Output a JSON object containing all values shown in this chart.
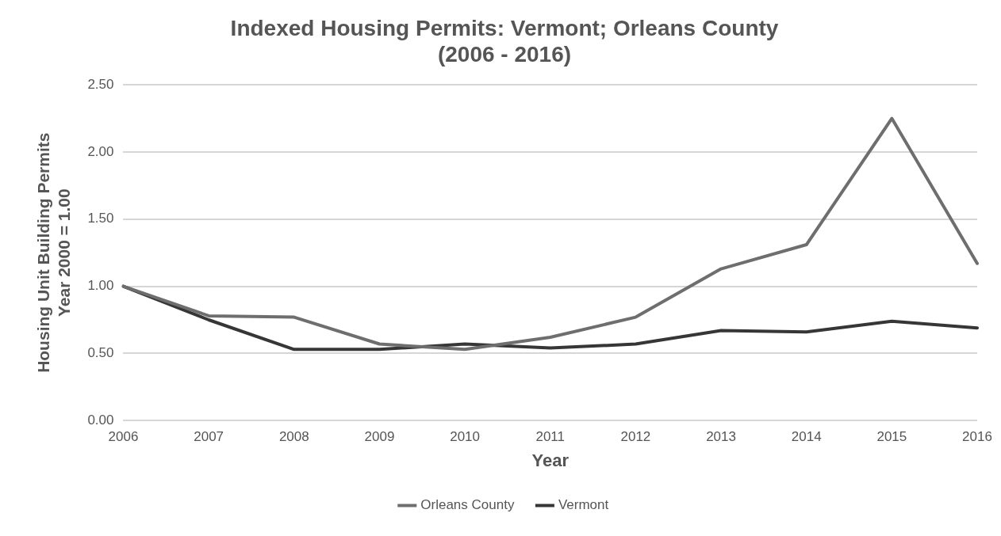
{
  "chart_data": {
    "type": "line",
    "title": [
      "Indexed Housing Permits: Vermont; Orleans County",
      "(2006 - 2016)"
    ],
    "xlabel": "Year",
    "ylabel": [
      "Housing Unit Building Permits",
      "Year 2000 = 1.00"
    ],
    "categories": [
      "2006",
      "2007",
      "2008",
      "2009",
      "2010",
      "2011",
      "2012",
      "2013",
      "2014",
      "2015",
      "2016"
    ],
    "series": [
      {
        "name": "Orleans County",
        "color": "#6e6e6e",
        "values": [
          1.0,
          0.78,
          0.77,
          0.57,
          0.53,
          0.62,
          0.77,
          1.13,
          1.31,
          2.25,
          1.17
        ]
      },
      {
        "name": "Vermont",
        "color": "#363636",
        "values": [
          1.0,
          0.75,
          0.53,
          0.53,
          0.57,
          0.54,
          0.57,
          0.67,
          0.66,
          0.74,
          0.69
        ]
      }
    ],
    "ylim": [
      0,
      2.5
    ],
    "yticks": [
      {
        "value": 0,
        "label": "0.00"
      },
      {
        "value": 0.5,
        "label": "0.50"
      },
      {
        "value": 1,
        "label": "1.00"
      },
      {
        "value": 1.5,
        "label": "1.50"
      },
      {
        "value": 2,
        "label": "2.00"
      },
      {
        "value": 2.5,
        "label": "2.50"
      }
    ],
    "grid": "y",
    "legend": "bottom",
    "marker": "none",
    "line_style": "solid"
  }
}
